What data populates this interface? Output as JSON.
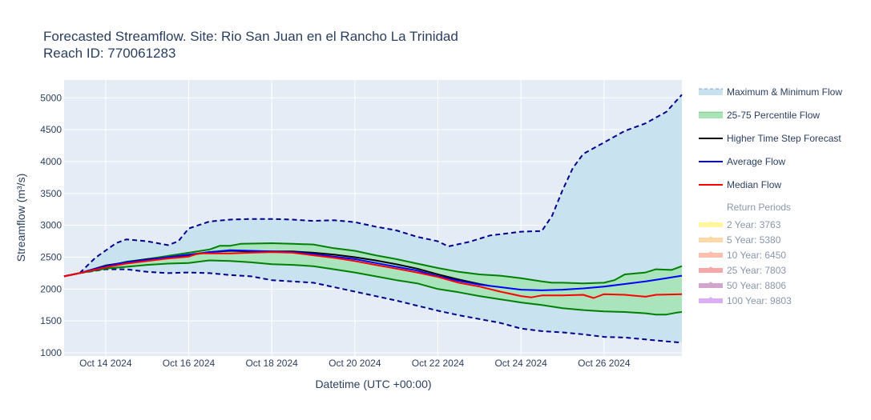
{
  "chart_data": {
    "type": "line",
    "title_line1": "Forecasted Streamflow. Site: Rio San Juan en el Rancho La Trinidad",
    "title_line2": "Reach ID: 770061283",
    "xlabel": "Datetime (UTC +00:00)",
    "ylabel": "Streamflow (m³/s)",
    "ylim": [
      950,
      5280
    ],
    "xlim": [
      "2024-10-13 00:00",
      "2024-10-27 21:00"
    ],
    "grid": true,
    "legend_position": "right",
    "y_ticks": [
      1000,
      1500,
      2000,
      2500,
      3000,
      3500,
      4000,
      4500,
      5000
    ],
    "y_tick_labels": [
      "1000",
      "1500",
      "2000",
      "2500",
      "3000",
      "3500",
      "4000",
      "4500",
      "5000"
    ],
    "x_ticks": [
      "2024-10-14",
      "2024-10-16",
      "2024-10-18",
      "2024-10-20",
      "2024-10-22",
      "2024-10-24",
      "2024-10-26"
    ],
    "x_tick_labels": [
      "Oct 14 2024",
      "Oct 16 2024",
      "Oct 18 2024",
      "Oct 20 2024",
      "Oct 22 2024",
      "Oct 24 2024",
      "Oct 26 2024"
    ],
    "series": [
      {
        "name": "Maximum & Minimum Flow",
        "kind": "band",
        "color": "#c9e2ef",
        "line_color": "#00008b",
        "upper": [
          [
            "2024-10-13 00:00",
            2200
          ],
          [
            "2024-10-13 09:00",
            2250
          ],
          [
            "2024-10-13 18:00",
            2490
          ],
          [
            "2024-10-14 06:00",
            2720
          ],
          [
            "2024-10-14 12:00",
            2780
          ],
          [
            "2024-10-15 00:00",
            2750
          ],
          [
            "2024-10-15 12:00",
            2690
          ],
          [
            "2024-10-15 18:00",
            2750
          ],
          [
            "2024-10-16 00:00",
            2950
          ],
          [
            "2024-10-16 12:00",
            3060
          ],
          [
            "2024-10-17 00:00",
            3090
          ],
          [
            "2024-10-17 12:00",
            3100
          ],
          [
            "2024-10-18 00:00",
            3100
          ],
          [
            "2024-10-18 12:00",
            3090
          ],
          [
            "2024-10-19 00:00",
            3070
          ],
          [
            "2024-10-19 12:00",
            3080
          ],
          [
            "2024-10-20 00:00",
            3050
          ],
          [
            "2024-10-20 12:00",
            2980
          ],
          [
            "2024-10-21 00:00",
            2920
          ],
          [
            "2024-10-21 12:00",
            2820
          ],
          [
            "2024-10-22 00:00",
            2750
          ],
          [
            "2024-10-22 06:00",
            2670
          ],
          [
            "2024-10-22 18:00",
            2740
          ],
          [
            "2024-10-23 06:00",
            2840
          ],
          [
            "2024-10-23 12:00",
            2860
          ],
          [
            "2024-10-24 00:00",
            2900
          ],
          [
            "2024-10-24 12:00",
            2910
          ],
          [
            "2024-10-24 18:00",
            3150
          ],
          [
            "2024-10-25 00:00",
            3550
          ],
          [
            "2024-10-25 06:00",
            3900
          ],
          [
            "2024-10-25 12:00",
            4120
          ],
          [
            "2024-10-26 00:00",
            4300
          ],
          [
            "2024-10-26 12:00",
            4480
          ],
          [
            "2024-10-27 00:00",
            4600
          ],
          [
            "2024-10-27 12:00",
            4780
          ],
          [
            "2024-10-27 21:00",
            5050
          ]
        ],
        "lower": [
          [
            "2024-10-13 00:00",
            2200
          ],
          [
            "2024-10-13 09:00",
            2250
          ],
          [
            "2024-10-14 00:00",
            2310
          ],
          [
            "2024-10-14 12:00",
            2310
          ],
          [
            "2024-10-15 00:00",
            2270
          ],
          [
            "2024-10-15 12:00",
            2250
          ],
          [
            "2024-10-16 00:00",
            2260
          ],
          [
            "2024-10-16 12:00",
            2250
          ],
          [
            "2024-10-17 00:00",
            2220
          ],
          [
            "2024-10-17 12:00",
            2200
          ],
          [
            "2024-10-18 00:00",
            2140
          ],
          [
            "2024-10-18 12:00",
            2120
          ],
          [
            "2024-10-19 00:00",
            2100
          ],
          [
            "2024-10-19 12:00",
            2030
          ],
          [
            "2024-10-20 00:00",
            1960
          ],
          [
            "2024-10-20 12:00",
            1890
          ],
          [
            "2024-10-21 00:00",
            1820
          ],
          [
            "2024-10-21 12:00",
            1740
          ],
          [
            "2024-10-22 00:00",
            1660
          ],
          [
            "2024-10-22 12:00",
            1590
          ],
          [
            "2024-10-23 00:00",
            1530
          ],
          [
            "2024-10-23 12:00",
            1470
          ],
          [
            "2024-10-24 00:00",
            1380
          ],
          [
            "2024-10-24 12:00",
            1340
          ],
          [
            "2024-10-25 00:00",
            1320
          ],
          [
            "2024-10-25 12:00",
            1290
          ],
          [
            "2024-10-26 00:00",
            1250
          ],
          [
            "2024-10-26 12:00",
            1240
          ],
          [
            "2024-10-27 00:00",
            1210
          ],
          [
            "2024-10-27 12:00",
            1180
          ],
          [
            "2024-10-27 21:00",
            1160
          ]
        ]
      },
      {
        "name": "25-75 Percentile Flow",
        "kind": "band",
        "color": "#a8e4b8",
        "line_color": "#008000",
        "upper": [
          [
            "2024-10-13 00:00",
            2200
          ],
          [
            "2024-10-13 09:00",
            2250
          ],
          [
            "2024-10-14 00:00",
            2350
          ],
          [
            "2024-10-14 12:00",
            2430
          ],
          [
            "2024-10-15 00:00",
            2470
          ],
          [
            "2024-10-15 12:00",
            2520
          ],
          [
            "2024-10-16 00:00",
            2570
          ],
          [
            "2024-10-16 12:00",
            2620
          ],
          [
            "2024-10-16 18:00",
            2680
          ],
          [
            "2024-10-17 00:00",
            2680
          ],
          [
            "2024-10-17 06:00",
            2710
          ],
          [
            "2024-10-18 00:00",
            2720
          ],
          [
            "2024-10-18 12:00",
            2710
          ],
          [
            "2024-10-19 00:00",
            2700
          ],
          [
            "2024-10-19 12:00",
            2640
          ],
          [
            "2024-10-20 00:00",
            2600
          ],
          [
            "2024-10-20 12:00",
            2530
          ],
          [
            "2024-10-21 00:00",
            2470
          ],
          [
            "2024-10-21 12:00",
            2400
          ],
          [
            "2024-10-22 00:00",
            2330
          ],
          [
            "2024-10-22 12:00",
            2270
          ],
          [
            "2024-10-23 00:00",
            2230
          ],
          [
            "2024-10-23 12:00",
            2210
          ],
          [
            "2024-10-24 00:00",
            2170
          ],
          [
            "2024-10-24 12:00",
            2120
          ],
          [
            "2024-10-24 18:00",
            2100
          ],
          [
            "2024-10-25 00:00",
            2100
          ],
          [
            "2024-10-25 12:00",
            2090
          ],
          [
            "2024-10-26 00:00",
            2100
          ],
          [
            "2024-10-26 06:00",
            2140
          ],
          [
            "2024-10-26 12:00",
            2230
          ],
          [
            "2024-10-27 00:00",
            2260
          ],
          [
            "2024-10-27 06:00",
            2310
          ],
          [
            "2024-10-27 15:00",
            2300
          ],
          [
            "2024-10-27 21:00",
            2360
          ]
        ],
        "lower": [
          [
            "2024-10-13 00:00",
            2200
          ],
          [
            "2024-10-13 09:00",
            2250
          ],
          [
            "2024-10-14 00:00",
            2320
          ],
          [
            "2024-10-14 12:00",
            2350
          ],
          [
            "2024-10-15 00:00",
            2380
          ],
          [
            "2024-10-15 12:00",
            2400
          ],
          [
            "2024-10-16 00:00",
            2410
          ],
          [
            "2024-10-16 12:00",
            2450
          ],
          [
            "2024-10-17 00:00",
            2440
          ],
          [
            "2024-10-17 12:00",
            2420
          ],
          [
            "2024-10-18 00:00",
            2390
          ],
          [
            "2024-10-18 12:00",
            2380
          ],
          [
            "2024-10-19 00:00",
            2360
          ],
          [
            "2024-10-19 12:00",
            2310
          ],
          [
            "2024-10-20 00:00",
            2260
          ],
          [
            "2024-10-20 12:00",
            2200
          ],
          [
            "2024-10-21 00:00",
            2140
          ],
          [
            "2024-10-21 12:00",
            2090
          ],
          [
            "2024-10-22 00:00",
            2000
          ],
          [
            "2024-10-22 12:00",
            1950
          ],
          [
            "2024-10-23 00:00",
            1890
          ],
          [
            "2024-10-23 12:00",
            1840
          ],
          [
            "2024-10-24 00:00",
            1790
          ],
          [
            "2024-10-24 12:00",
            1750
          ],
          [
            "2024-10-25 00:00",
            1700
          ],
          [
            "2024-10-25 12:00",
            1670
          ],
          [
            "2024-10-26 00:00",
            1650
          ],
          [
            "2024-10-26 12:00",
            1640
          ],
          [
            "2024-10-27 00:00",
            1620
          ],
          [
            "2024-10-27 06:00",
            1600
          ],
          [
            "2024-10-27 12:00",
            1600
          ],
          [
            "2024-10-27 18:00",
            1630
          ],
          [
            "2024-10-27 21:00",
            1640
          ]
        ]
      },
      {
        "name": "Higher Time Step Forecast",
        "kind": "line",
        "color": "#000000",
        "points": [
          [
            "2024-10-13 00:00",
            2200
          ],
          [
            "2024-10-13 09:00",
            2250
          ],
          [
            "2024-10-14 00:00",
            2370
          ],
          [
            "2024-10-14 12:00",
            2420
          ],
          [
            "2024-10-15 00:00",
            2470
          ],
          [
            "2024-10-15 12:00",
            2490
          ],
          [
            "2024-10-16 00:00",
            2530
          ],
          [
            "2024-10-16 12:00",
            2580
          ],
          [
            "2024-10-17 00:00",
            2600
          ],
          [
            "2024-10-17 12:00",
            2590
          ],
          [
            "2024-10-18 00:00",
            2590
          ],
          [
            "2024-10-18 12:00",
            2590
          ],
          [
            "2024-10-19 00:00",
            2570
          ],
          [
            "2024-10-19 12:00",
            2540
          ],
          [
            "2024-10-20 00:00",
            2500
          ],
          [
            "2024-10-20 12:00",
            2450
          ],
          [
            "2024-10-21 00:00",
            2390
          ],
          [
            "2024-10-21 12:00",
            2320
          ],
          [
            "2024-10-22 00:00",
            2230
          ],
          [
            "2024-10-22 12:00",
            2150
          ],
          [
            "2024-10-23 00:00",
            2080
          ],
          [
            "2024-10-23 06:00",
            2050
          ]
        ]
      },
      {
        "name": "Average Flow",
        "kind": "line",
        "color": "#0000ff",
        "points": [
          [
            "2024-10-13 00:00",
            2200
          ],
          [
            "2024-10-13 09:00",
            2250
          ],
          [
            "2024-10-14 00:00",
            2360
          ],
          [
            "2024-10-14 12:00",
            2420
          ],
          [
            "2024-10-15 00:00",
            2460
          ],
          [
            "2024-10-15 12:00",
            2500
          ],
          [
            "2024-10-16 00:00",
            2540
          ],
          [
            "2024-10-16 12:00",
            2580
          ],
          [
            "2024-10-17 00:00",
            2610
          ],
          [
            "2024-10-17 12:00",
            2600
          ],
          [
            "2024-10-18 00:00",
            2590
          ],
          [
            "2024-10-18 12:00",
            2580
          ],
          [
            "2024-10-19 00:00",
            2550
          ],
          [
            "2024-10-19 12:00",
            2510
          ],
          [
            "2024-10-20 00:00",
            2470
          ],
          [
            "2024-10-20 12:00",
            2410
          ],
          [
            "2024-10-21 00:00",
            2350
          ],
          [
            "2024-10-21 12:00",
            2290
          ],
          [
            "2024-10-22 00:00",
            2200
          ],
          [
            "2024-10-22 12:00",
            2130
          ],
          [
            "2024-10-23 00:00",
            2070
          ],
          [
            "2024-10-23 12:00",
            2030
          ],
          [
            "2024-10-24 00:00",
            1990
          ],
          [
            "2024-10-24 12:00",
            1980
          ],
          [
            "2024-10-25 00:00",
            1990
          ],
          [
            "2024-10-25 12:00",
            2010
          ],
          [
            "2024-10-26 00:00",
            2040
          ],
          [
            "2024-10-26 12:00",
            2080
          ],
          [
            "2024-10-27 00:00",
            2120
          ],
          [
            "2024-10-27 12:00",
            2170
          ],
          [
            "2024-10-27 21:00",
            2210
          ]
        ]
      },
      {
        "name": "Median Flow",
        "kind": "line",
        "color": "#ff0000",
        "points": [
          [
            "2024-10-13 00:00",
            2200
          ],
          [
            "2024-10-13 09:00",
            2250
          ],
          [
            "2024-10-14 00:00",
            2340
          ],
          [
            "2024-10-14 12:00",
            2400
          ],
          [
            "2024-10-15 00:00",
            2440
          ],
          [
            "2024-10-15 12:00",
            2480
          ],
          [
            "2024-10-16 00:00",
            2510
          ],
          [
            "2024-10-16 06:00",
            2560
          ],
          [
            "2024-10-17 00:00",
            2560
          ],
          [
            "2024-10-17 12:00",
            2570
          ],
          [
            "2024-10-18 00:00",
            2580
          ],
          [
            "2024-10-18 12:00",
            2570
          ],
          [
            "2024-10-19 00:00",
            2530
          ],
          [
            "2024-10-19 12:00",
            2490
          ],
          [
            "2024-10-20 00:00",
            2440
          ],
          [
            "2024-10-20 12:00",
            2380
          ],
          [
            "2024-10-21 00:00",
            2320
          ],
          [
            "2024-10-21 12:00",
            2260
          ],
          [
            "2024-10-22 00:00",
            2190
          ],
          [
            "2024-10-22 12:00",
            2100
          ],
          [
            "2024-10-23 00:00",
            2040
          ],
          [
            "2024-10-23 12:00",
            1960
          ],
          [
            "2024-10-24 00:00",
            1890
          ],
          [
            "2024-10-24 06:00",
            1870
          ],
          [
            "2024-10-24 12:00",
            1900
          ],
          [
            "2024-10-25 00:00",
            1900
          ],
          [
            "2024-10-25 12:00",
            1910
          ],
          [
            "2024-10-25 18:00",
            1860
          ],
          [
            "2024-10-26 00:00",
            1920
          ],
          [
            "2024-10-26 12:00",
            1910
          ],
          [
            "2024-10-27 00:00",
            1880
          ],
          [
            "2024-10-27 06:00",
            1910
          ],
          [
            "2024-10-27 21:00",
            1920
          ]
        ]
      }
    ],
    "return_periods": {
      "title": "Return Periods",
      "items": [
        {
          "label": "2 Year: 3763",
          "value": 3763,
          "color": "#fff59d"
        },
        {
          "label": "5 Year: 5380",
          "value": 5380,
          "color": "#ffd8a8"
        },
        {
          "label": "10 Year: 6450",
          "value": 6450,
          "color": "#ffbfae"
        },
        {
          "label": "25 Year: 7803",
          "value": 7803,
          "color": "#f7a7a7"
        },
        {
          "label": "50 Year: 8806",
          "value": 8806,
          "color": "#d4a5cc"
        },
        {
          "label": "100 Year: 9803",
          "value": 9803,
          "color": "#d9b0f5"
        }
      ]
    }
  }
}
